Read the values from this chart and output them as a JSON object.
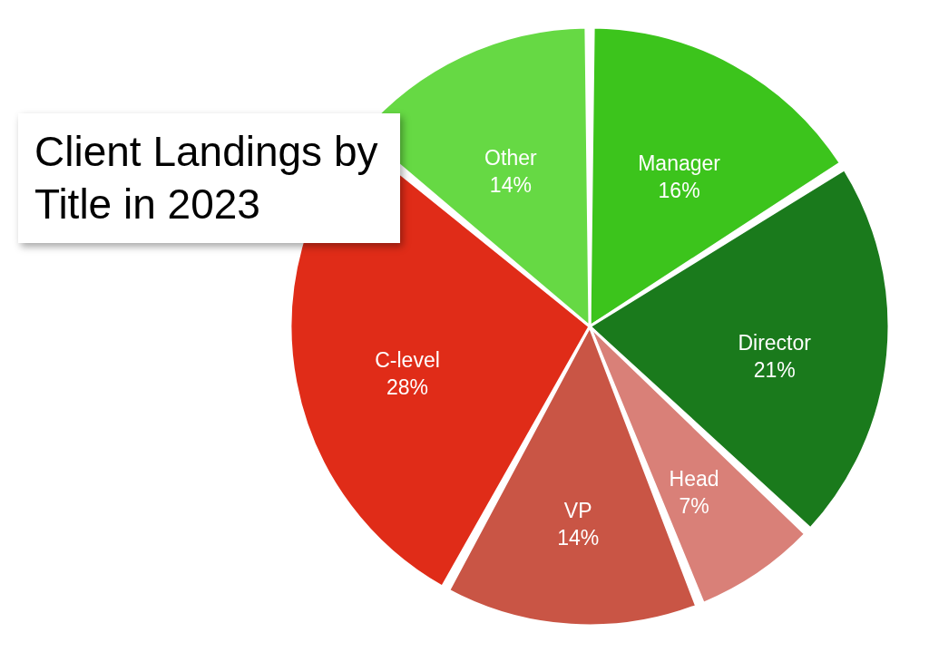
{
  "chart_data": {
    "type": "pie",
    "title": "Client Landings by Title in 2023",
    "categories": [
      "Manager",
      "Director",
      "Head",
      "VP",
      "C-level",
      "Other"
    ],
    "values": [
      16,
      21,
      7,
      14,
      28,
      14
    ],
    "value_labels": [
      "16%",
      "21%",
      "7%",
      "14%",
      "28%",
      "14%"
    ],
    "colors": [
      "#3cc41c",
      "#1a7a1c",
      "#d98078",
      "#c95545",
      "#e02c18",
      "#66d944"
    ]
  }
}
